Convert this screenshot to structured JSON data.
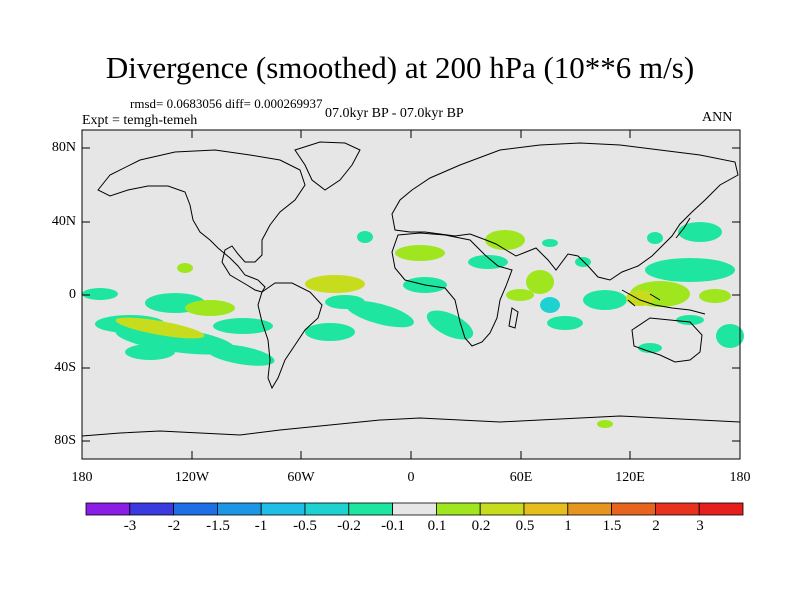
{
  "title": "Divergence (smoothed) at 200 hPa (10**6 m/s)",
  "stats": "rmsd= 0.0683056 diff= 0.000269937",
  "experiment": "Expt = temgh-temeh",
  "period": "07.0kyr BP - 07.0kyr BP",
  "season": "ANN",
  "axes": {
    "y_labels": [
      "80N",
      "40N",
      "0",
      "40S",
      "80S"
    ],
    "x_labels": [
      "180",
      "120W",
      "60W",
      "0",
      "60E",
      "120E",
      "180"
    ]
  },
  "colorbar": {
    "labels": [
      "-3",
      "-2",
      "-1.5",
      "-1",
      "-0.5",
      "-0.2",
      "-0.1",
      "0.1",
      "0.2",
      "0.5",
      "1",
      "1.5",
      "2",
      "3"
    ],
    "colors": [
      "#8a1ee6",
      "#3a3ae0",
      "#1e6ee6",
      "#1e96e6",
      "#1ebee6",
      "#1ed2d2",
      "#1ee6a0",
      "#e6e6e6",
      "#a0e61e",
      "#c8dc1e",
      "#e6be1e",
      "#e6961e",
      "#e6641e",
      "#e6321e",
      "#e61e1e"
    ]
  },
  "colors": {
    "background": "#e6e6e6",
    "coast": "#000000",
    "teal": "#1ee6a0",
    "cyan": "#1ed2d2",
    "lightgreen": "#a0e61e",
    "yellowgreen": "#c8dc1e",
    "orange": "#e6be1e"
  }
}
